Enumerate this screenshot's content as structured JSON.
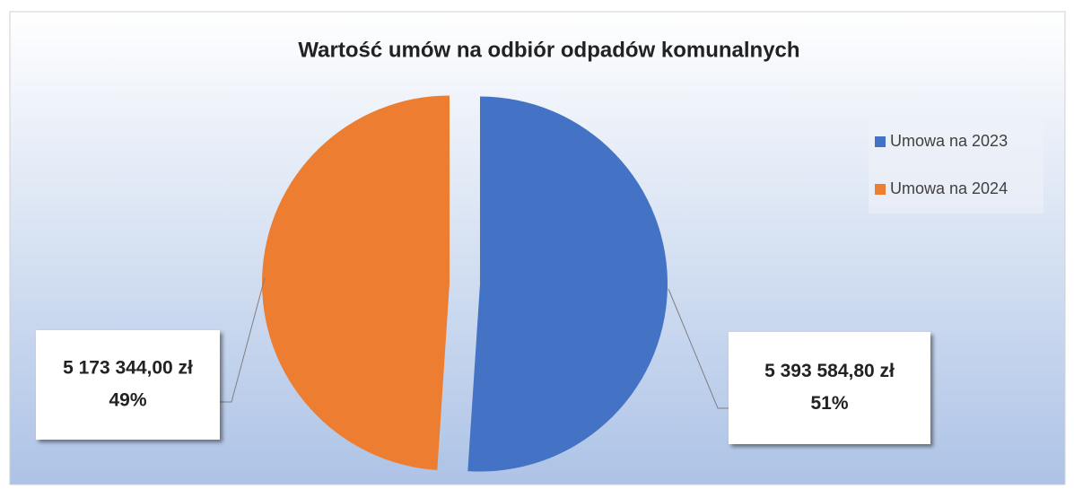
{
  "chart_data": {
    "type": "pie",
    "title": "Wartość umów na odbiór odpadów komunalnych",
    "series": [
      {
        "name": "Umowa na 2023",
        "color": "#4472c4"
      },
      {
        "name": "Umowa na 2024",
        "color": "#ed7d31"
      }
    ],
    "values": [
      5393584.8,
      5173344.0
    ],
    "value_labels": [
      "5 393 584,80 zł",
      "5 173 344,00 zł"
    ],
    "percent_labels": [
      "51%",
      "49%"
    ],
    "legend": "right"
  }
}
